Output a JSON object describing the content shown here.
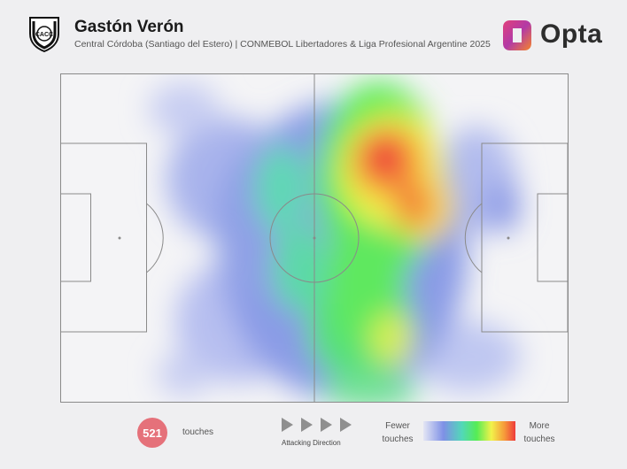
{
  "header": {
    "player_name": "Gastón Verón",
    "subtitle": "Central Córdoba (Santiago del Estero) | CONMEBOL Libertadores & Liga Profesional Argentine 2025",
    "crest_text": "CACC",
    "brand": "Opta"
  },
  "footer": {
    "touch_count": "521",
    "touch_label": "touches",
    "attacking_direction_label": "Attacking Direction",
    "legend_fewer": [
      "Fewer",
      "touches"
    ],
    "legend_more": [
      "More",
      "touches"
    ]
  },
  "colors": {
    "background": "#efeff1",
    "badge": "#e5717a",
    "pitch_lines": "#8a8a8a",
    "heat_low": "#7e90e6",
    "heat_mid": "#55ec55",
    "heat_high": "#ee3b3b"
  },
  "icons": [
    "club-crest-icon",
    "opta-logo-icon",
    "play-arrow-icon"
  ]
}
